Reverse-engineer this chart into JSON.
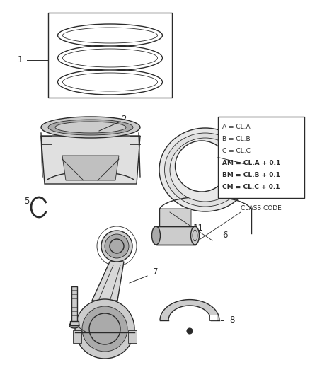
{
  "bg_color": "#ffffff",
  "line_color": "#2a2a2a",
  "text_color": "#2a2a2a",
  "light_gray": "#cccccc",
  "mid_gray": "#aaaaaa",
  "dark_gray": "#888888",
  "class_code_lines": [
    "A = CL.A",
    "B = CL.B",
    "C = CL.C",
    "AM = CL.A + 0.1",
    "BM = CL.B + 0.1",
    "CM = CL.C + 0.1"
  ],
  "class_code_label": "CLASS CODE",
  "figsize": [
    4.38,
    5.33
  ],
  "dpi": 100
}
